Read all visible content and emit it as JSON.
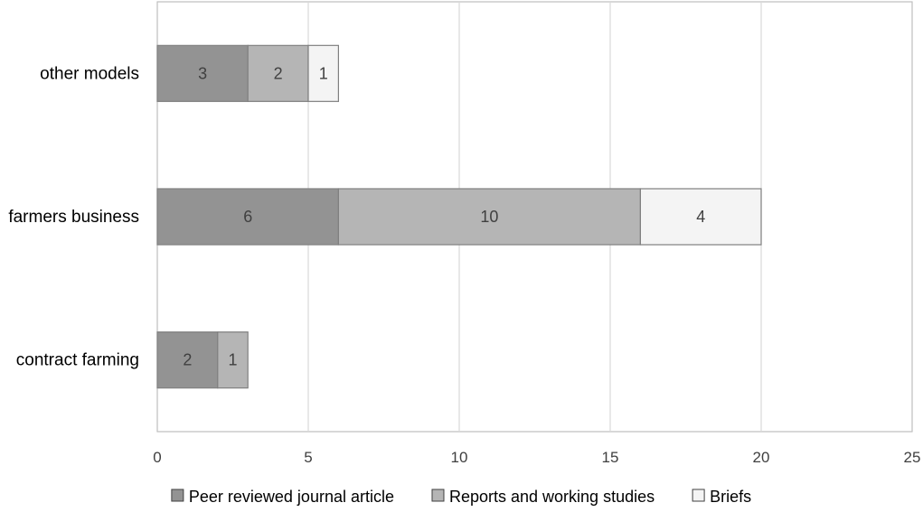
{
  "chart_data": {
    "type": "bar",
    "orientation": "horizontal",
    "stacked": true,
    "categories": [
      "contract farming",
      "farmers business",
      "other models"
    ],
    "series": [
      {
        "name": "Peer reviewed journal article",
        "values": [
          2,
          6,
          3
        ],
        "color": "#939393"
      },
      {
        "name": "Reports and working studies",
        "values": [
          1,
          10,
          2
        ],
        "color": "#b5b5b5"
      },
      {
        "name": "Briefs",
        "values": [
          0,
          4,
          1
        ],
        "color": "#f4f4f4"
      }
    ],
    "xlim": [
      0,
      25
    ],
    "xticks": [
      "0",
      "5",
      "10",
      "15",
      "20",
      "25"
    ],
    "grid": "vertical",
    "legend_position": "bottom"
  }
}
